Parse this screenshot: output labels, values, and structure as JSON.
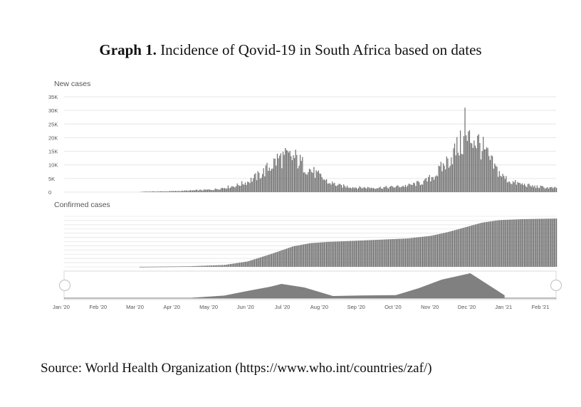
{
  "figure": {
    "title_bold": "Graph 1.",
    "title_rest": " Incidence of Qovid-19 in South Africa based on dates",
    "source": "Source: World Health Organization (https://www.who.int/countries/zaf/)"
  },
  "colors": {
    "bar": "#6e6e6e",
    "area": "#808080",
    "grid": "#e6e6e6",
    "text": "#555555"
  },
  "chart_data": [
    {
      "type": "bar",
      "title": "New cases",
      "ylim": [
        0,
        35000
      ],
      "yticks": [
        {
          "value": 35000,
          "label": "35K"
        },
        {
          "value": 30000,
          "label": "30K"
        },
        {
          "value": 25000,
          "label": "25K"
        },
        {
          "value": 20000,
          "label": "20K"
        },
        {
          "value": 15000,
          "label": "15K"
        },
        {
          "value": 10000,
          "label": "10K"
        },
        {
          "value": 5000,
          "label": "5K"
        },
        {
          "value": 0,
          "label": "0"
        }
      ],
      "x_range_days": [
        0,
        430
      ],
      "series_anchors": [
        {
          "day": 0,
          "value": 0
        },
        {
          "day": 65,
          "value": 0
        },
        {
          "day": 70,
          "value": 200
        },
        {
          "day": 90,
          "value": 300
        },
        {
          "day": 110,
          "value": 600
        },
        {
          "day": 130,
          "value": 1000
        },
        {
          "day": 150,
          "value": 2500
        },
        {
          "day": 160,
          "value": 4000
        },
        {
          "day": 172,
          "value": 7000
        },
        {
          "day": 180,
          "value": 10000
        },
        {
          "day": 187,
          "value": 13000
        },
        {
          "day": 195,
          "value": 13500
        },
        {
          "day": 202,
          "value": 13000
        },
        {
          "day": 210,
          "value": 10000
        },
        {
          "day": 220,
          "value": 7000
        },
        {
          "day": 230,
          "value": 4000
        },
        {
          "day": 240,
          "value": 2500
        },
        {
          "day": 255,
          "value": 1800
        },
        {
          "day": 270,
          "value": 1700
        },
        {
          "day": 285,
          "value": 1900
        },
        {
          "day": 300,
          "value": 2500
        },
        {
          "day": 315,
          "value": 4000
        },
        {
          "day": 325,
          "value": 7000
        },
        {
          "day": 335,
          "value": 12000
        },
        {
          "day": 345,
          "value": 18000
        },
        {
          "day": 352,
          "value": 20000
        },
        {
          "day": 357,
          "value": 21000
        },
        {
          "day": 362,
          "value": 19000
        },
        {
          "day": 368,
          "value": 15000
        },
        {
          "day": 375,
          "value": 10000
        },
        {
          "day": 383,
          "value": 6000
        },
        {
          "day": 390,
          "value": 4000
        },
        {
          "day": 400,
          "value": 3000
        },
        {
          "day": 410,
          "value": 2200
        },
        {
          "day": 420,
          "value": 1800
        },
        {
          "day": 430,
          "value": 1500
        }
      ],
      "spikes": [
        {
          "day": 350,
          "value": 31000
        },
        {
          "day": 231,
          "value": 3200
        }
      ]
    },
    {
      "type": "bar",
      "title": "Confirmed cases",
      "ylim": [
        0,
        1600000
      ],
      "x_range_days": [
        0,
        430
      ],
      "series_anchors": [
        {
          "day": 0,
          "value": 0
        },
        {
          "day": 65,
          "value": 0
        },
        {
          "day": 110,
          "value": 20000
        },
        {
          "day": 140,
          "value": 60000
        },
        {
          "day": 160,
          "value": 170000
        },
        {
          "day": 180,
          "value": 400000
        },
        {
          "day": 200,
          "value": 650000
        },
        {
          "day": 215,
          "value": 750000
        },
        {
          "day": 230,
          "value": 790000
        },
        {
          "day": 250,
          "value": 820000
        },
        {
          "day": 270,
          "value": 850000
        },
        {
          "day": 300,
          "value": 900000
        },
        {
          "day": 320,
          "value": 980000
        },
        {
          "day": 335,
          "value": 1100000
        },
        {
          "day": 350,
          "value": 1250000
        },
        {
          "day": 365,
          "value": 1400000
        },
        {
          "day": 380,
          "value": 1480000
        },
        {
          "day": 400,
          "value": 1510000
        },
        {
          "day": 430,
          "value": 1530000
        }
      ]
    },
    {
      "type": "area",
      "title": "",
      "x_range_days": [
        0,
        430
      ],
      "series_anchors": [
        {
          "day": 0,
          "value": 0
        },
        {
          "day": 110,
          "value": 200
        },
        {
          "day": 140,
          "value": 1800
        },
        {
          "day": 160,
          "value": 5000
        },
        {
          "day": 180,
          "value": 8000
        },
        {
          "day": 190,
          "value": 10000
        },
        {
          "day": 210,
          "value": 7500
        },
        {
          "day": 235,
          "value": 1500
        },
        {
          "day": 260,
          "value": 1900
        },
        {
          "day": 290,
          "value": 2100
        },
        {
          "day": 310,
          "value": 7000
        },
        {
          "day": 330,
          "value": 13000
        },
        {
          "day": 355,
          "value": 17500
        },
        {
          "day": 385,
          "value": 2000
        }
      ],
      "ymax": 18000,
      "x_tick_labels": [
        "Jan '20",
        "Feb '20",
        "Mar '20",
        "Apr '20",
        "May '20",
        "Jun '20",
        "Jul '20",
        "Aug '20",
        "Sep '20",
        "Oct '20",
        "Nov '20",
        "Dec '20",
        "Jan '21",
        "Feb '21"
      ]
    }
  ]
}
